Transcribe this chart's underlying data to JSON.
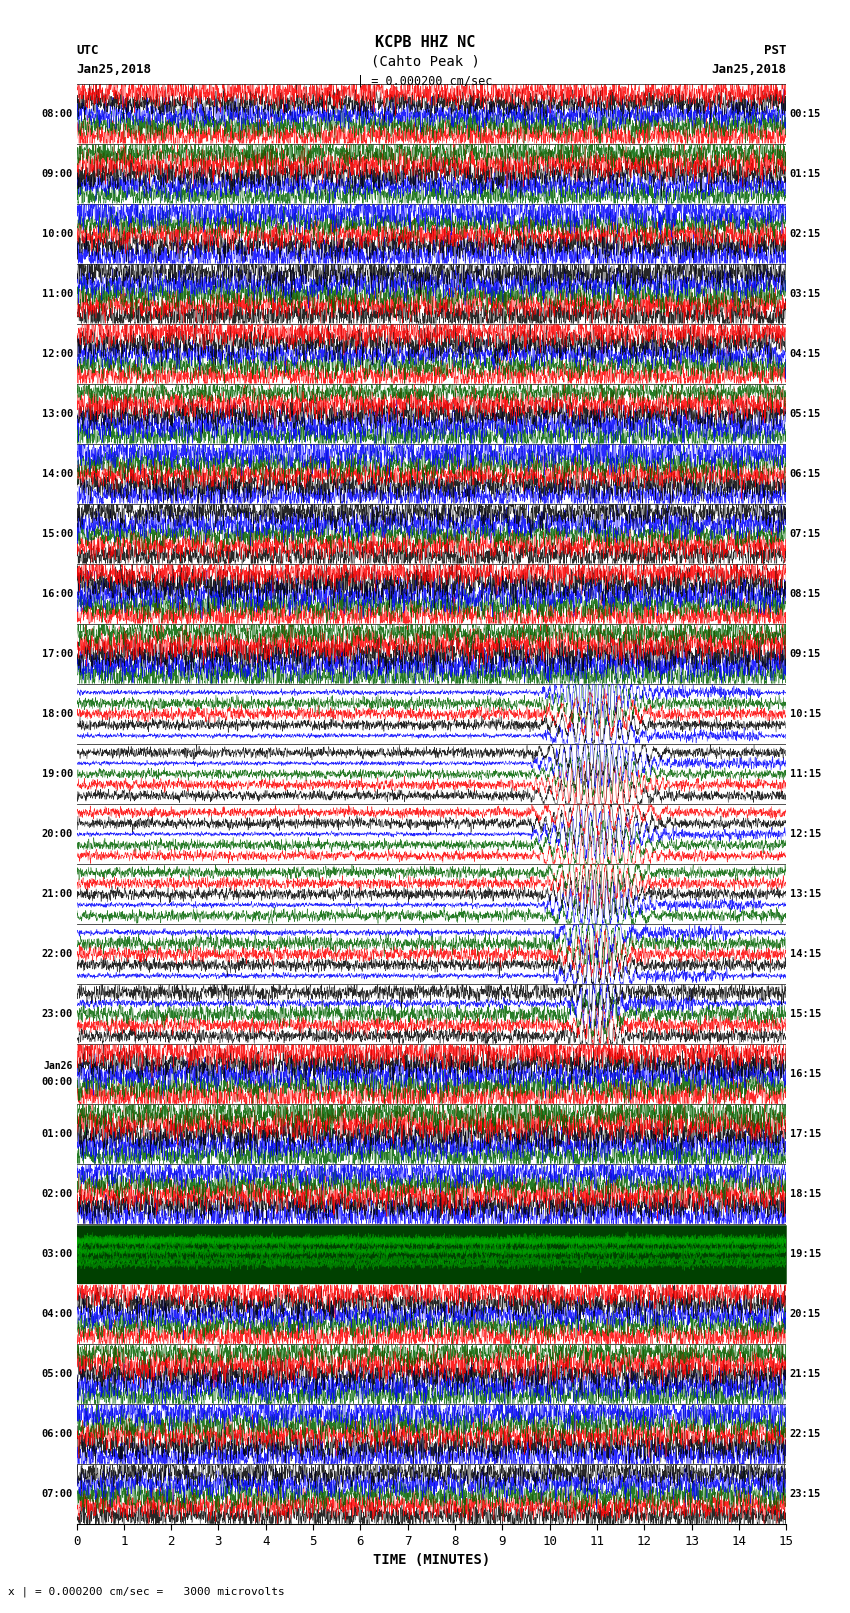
{
  "title_line1": "KCPB HHZ NC",
  "title_line2": "(Cahto Peak )",
  "title_line3": "| = 0.000200 cm/sec",
  "xlabel": "TIME (MINUTES)",
  "footer": "x | = 0.000200 cm/sec =   3000 microvolts",
  "left_times_utc": [
    "08:00",
    "09:00",
    "10:00",
    "11:00",
    "12:00",
    "13:00",
    "14:00",
    "15:00",
    "16:00",
    "17:00",
    "18:00",
    "19:00",
    "20:00",
    "21:00",
    "22:00",
    "23:00",
    "Jan26\n00:00",
    "01:00",
    "02:00",
    "03:00",
    "04:00",
    "05:00",
    "06:00",
    "07:00"
  ],
  "right_times_pst": [
    "00:15",
    "01:15",
    "02:15",
    "03:15",
    "04:15",
    "05:15",
    "06:15",
    "07:15",
    "08:15",
    "09:15",
    "10:15",
    "11:15",
    "12:15",
    "13:15",
    "14:15",
    "15:15",
    "16:15",
    "17:15",
    "18:15",
    "19:15",
    "20:15",
    "21:15",
    "22:15",
    "23:15"
  ],
  "n_rows": 24,
  "n_minutes": 15,
  "bg_color": "#ffffff",
  "colors_cycle": [
    "#ff0000",
    "#006400",
    "#0000ff",
    "#000000"
  ],
  "seismic_event_minute": 11.0,
  "seismic_event_rows": [
    10,
    11,
    12,
    13,
    14,
    15
  ],
  "green_band_rows": [
    19
  ]
}
